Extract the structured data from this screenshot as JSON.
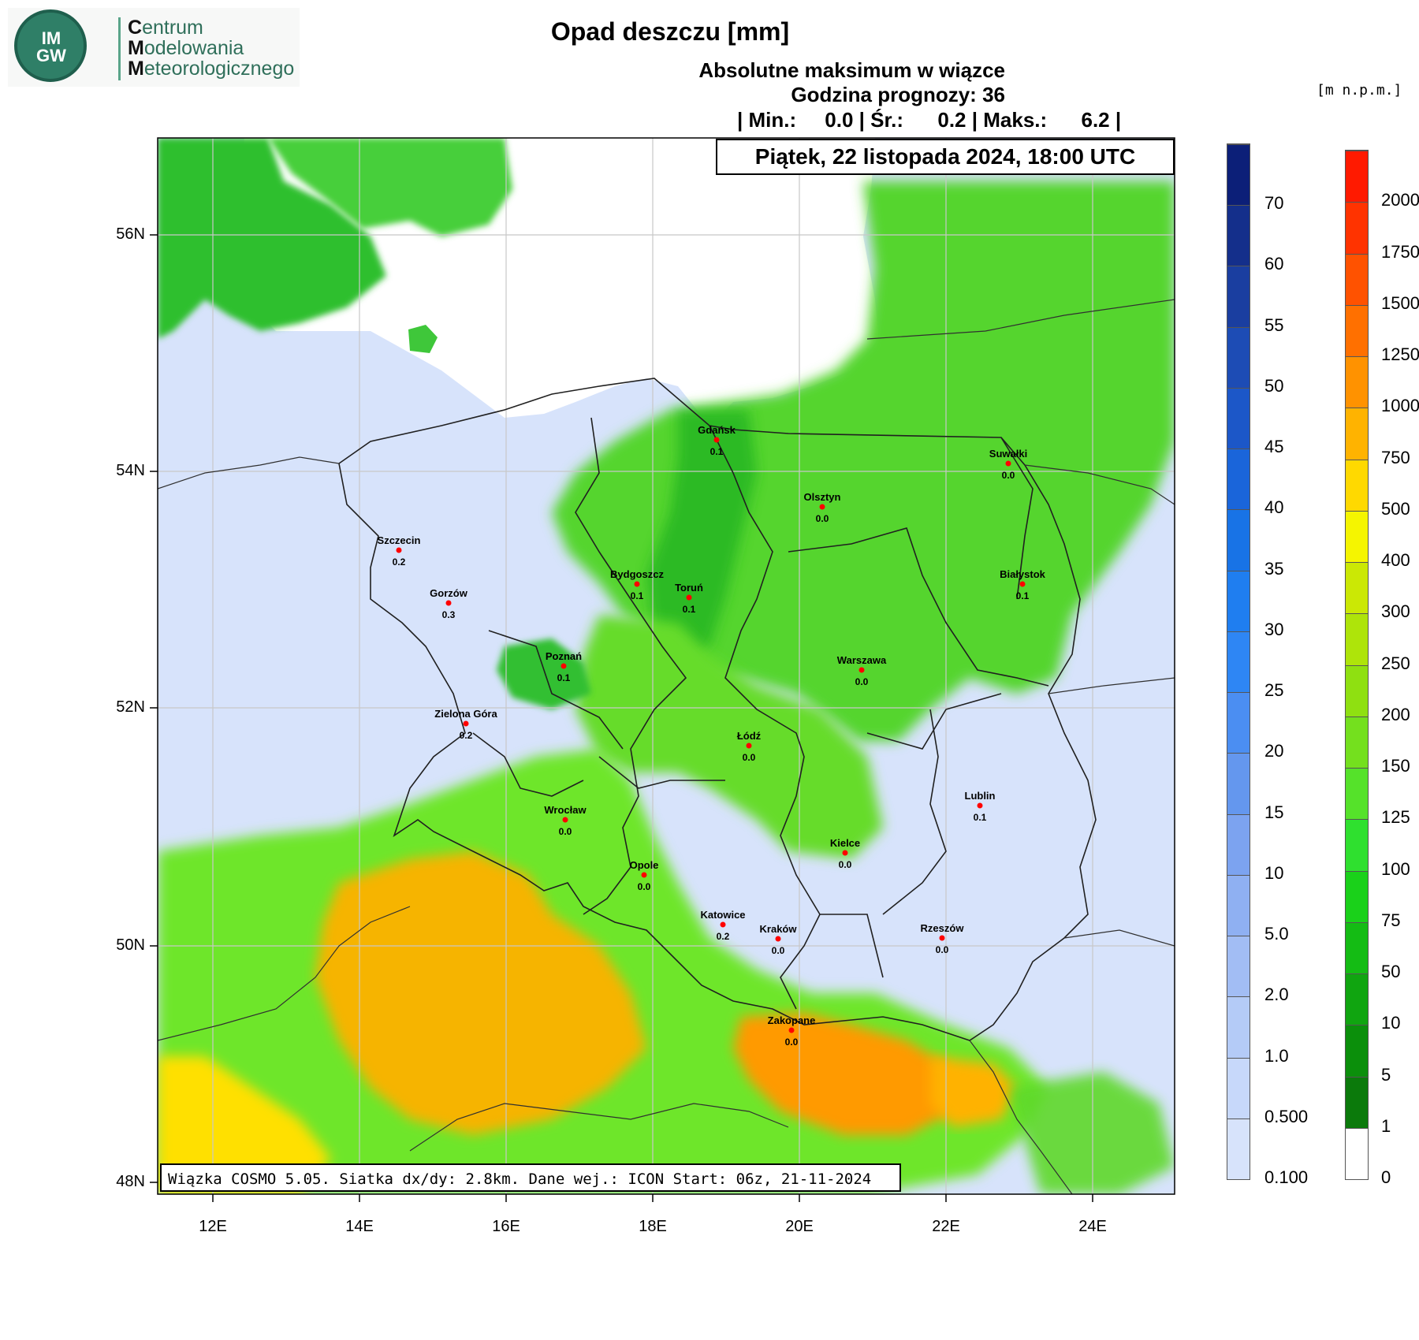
{
  "logo": {
    "badge_text_top": "IM",
    "badge_text_bottom": "GW",
    "line1_initial": "C",
    "line1_rest": "entrum",
    "line2_initial": "M",
    "line2_rest": "odelowania",
    "line3_initial": "M",
    "line3_rest": "eteorologicznego"
  },
  "title": "Opad deszczu [mm]",
  "subtitle1": "Absolutne maksimum w wiązce",
  "subtitle2": "Godzina prognozy: 36",
  "stats_line": "| Min.:     0.0 | Śr.:      0.2 | Maks.:      6.2 |",
  "date_label": "Piątek, 22 listopada 2024, 18:00 UTC",
  "footer": "Wiązka COSMO 5.05. Siatka dx/dy: 2.8km. Dane wej.: ICON Start: 06z, 21-11-2024",
  "elevation_unit": "[m n.p.m.]",
  "precip_colorbar": {
    "labels": [
      "0.100",
      "0.500",
      "1.0",
      "2.0",
      "5.0",
      "10",
      "15",
      "20",
      "25",
      "30",
      "35",
      "40",
      "45",
      "50",
      "55",
      "60",
      "70"
    ],
    "colors": [
      "#d7e3fb",
      "#c7d8fa",
      "#b4cbf7",
      "#a2bdf4",
      "#8fb0f2",
      "#7ca3f0",
      "#6497ee",
      "#4b8ef2",
      "#2e86f4",
      "#1f7ef0",
      "#1873e6",
      "#1a65da",
      "#1c57c8",
      "#1d4cb5",
      "#1a3ea0",
      "#142f8b",
      "#0c1f78"
    ]
  },
  "elevation_colorbar": {
    "labels": [
      "0",
      "1",
      "5",
      "10",
      "50",
      "75",
      "100",
      "125",
      "150",
      "200",
      "250",
      "300",
      "400",
      "500",
      "750",
      "1000",
      "1250",
      "1500",
      "1750",
      "2000"
    ],
    "colors": [
      "#ffffff",
      "#0b7a0b",
      "#0b8f0b",
      "#10a510",
      "#14bc14",
      "#1ad11a",
      "#2fe02f",
      "#55e22a",
      "#74e01e",
      "#8fe011",
      "#aee40a",
      "#cbe805",
      "#f5f500",
      "#ffd900",
      "#ffb300",
      "#ff9200",
      "#ff7000",
      "#ff5200",
      "#ff3300",
      "#ff1a00"
    ]
  },
  "latitude_labels": [
    "56N",
    "54N",
    "52N",
    "50N",
    "48N"
  ],
  "longitude_labels": [
    "12E",
    "14E",
    "16E",
    "18E",
    "20E",
    "22E",
    "24E"
  ],
  "cities": [
    {
      "name": "Gdańsk",
      "value": "0.1"
    },
    {
      "name": "Suwałki",
      "value": "0.0"
    },
    {
      "name": "Olsztyn",
      "value": "0.0"
    },
    {
      "name": "Szczecin",
      "value": "0.2"
    },
    {
      "name": "Bydgoszcz",
      "value": "0.1"
    },
    {
      "name": "Toruń",
      "value": "0.1"
    },
    {
      "name": "Białystok",
      "value": "0.1"
    },
    {
      "name": "Gorzów",
      "value": "0.3"
    },
    {
      "name": "Poznań",
      "value": "0.1"
    },
    {
      "name": "Warszawa",
      "value": "0.0"
    },
    {
      "name": "Zielona Góra",
      "value": "0.2"
    },
    {
      "name": "Łódź",
      "value": "0.0"
    },
    {
      "name": "Lublin",
      "value": "0.1"
    },
    {
      "name": "Wrocław",
      "value": "0.0"
    },
    {
      "name": "Kielce",
      "value": "0.0"
    },
    {
      "name": "Opole",
      "value": "0.0"
    },
    {
      "name": "Katowice",
      "value": "0.2"
    },
    {
      "name": "Kraków",
      "value": "0.0"
    },
    {
      "name": "Rzeszów",
      "value": "0.0"
    },
    {
      "name": "Zakopane",
      "value": "0.0"
    }
  ],
  "colors": {
    "no_rain": "#d7e3fb",
    "sea": "#ffffff",
    "lowland_green": "#6ee62a",
    "dark_green": "#19b41e",
    "mountain_orange": "#ffb300",
    "city_marker": "#ff0000"
  }
}
